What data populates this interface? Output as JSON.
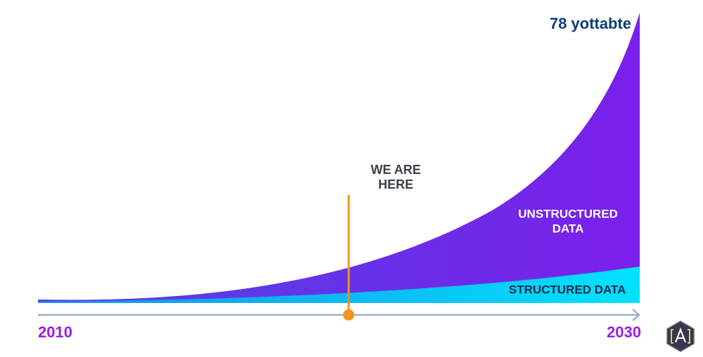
{
  "header": {
    "top_label": "78 yottabte"
  },
  "marker": {
    "lines": [
      "WE ARE",
      "HERE"
    ]
  },
  "areas": {
    "unstructured": [
      "UNSTRUCTURED",
      "DATA"
    ],
    "structured": "STRUCTURED DATA"
  },
  "axis": {
    "start": "2010",
    "end": "2030"
  }
}
